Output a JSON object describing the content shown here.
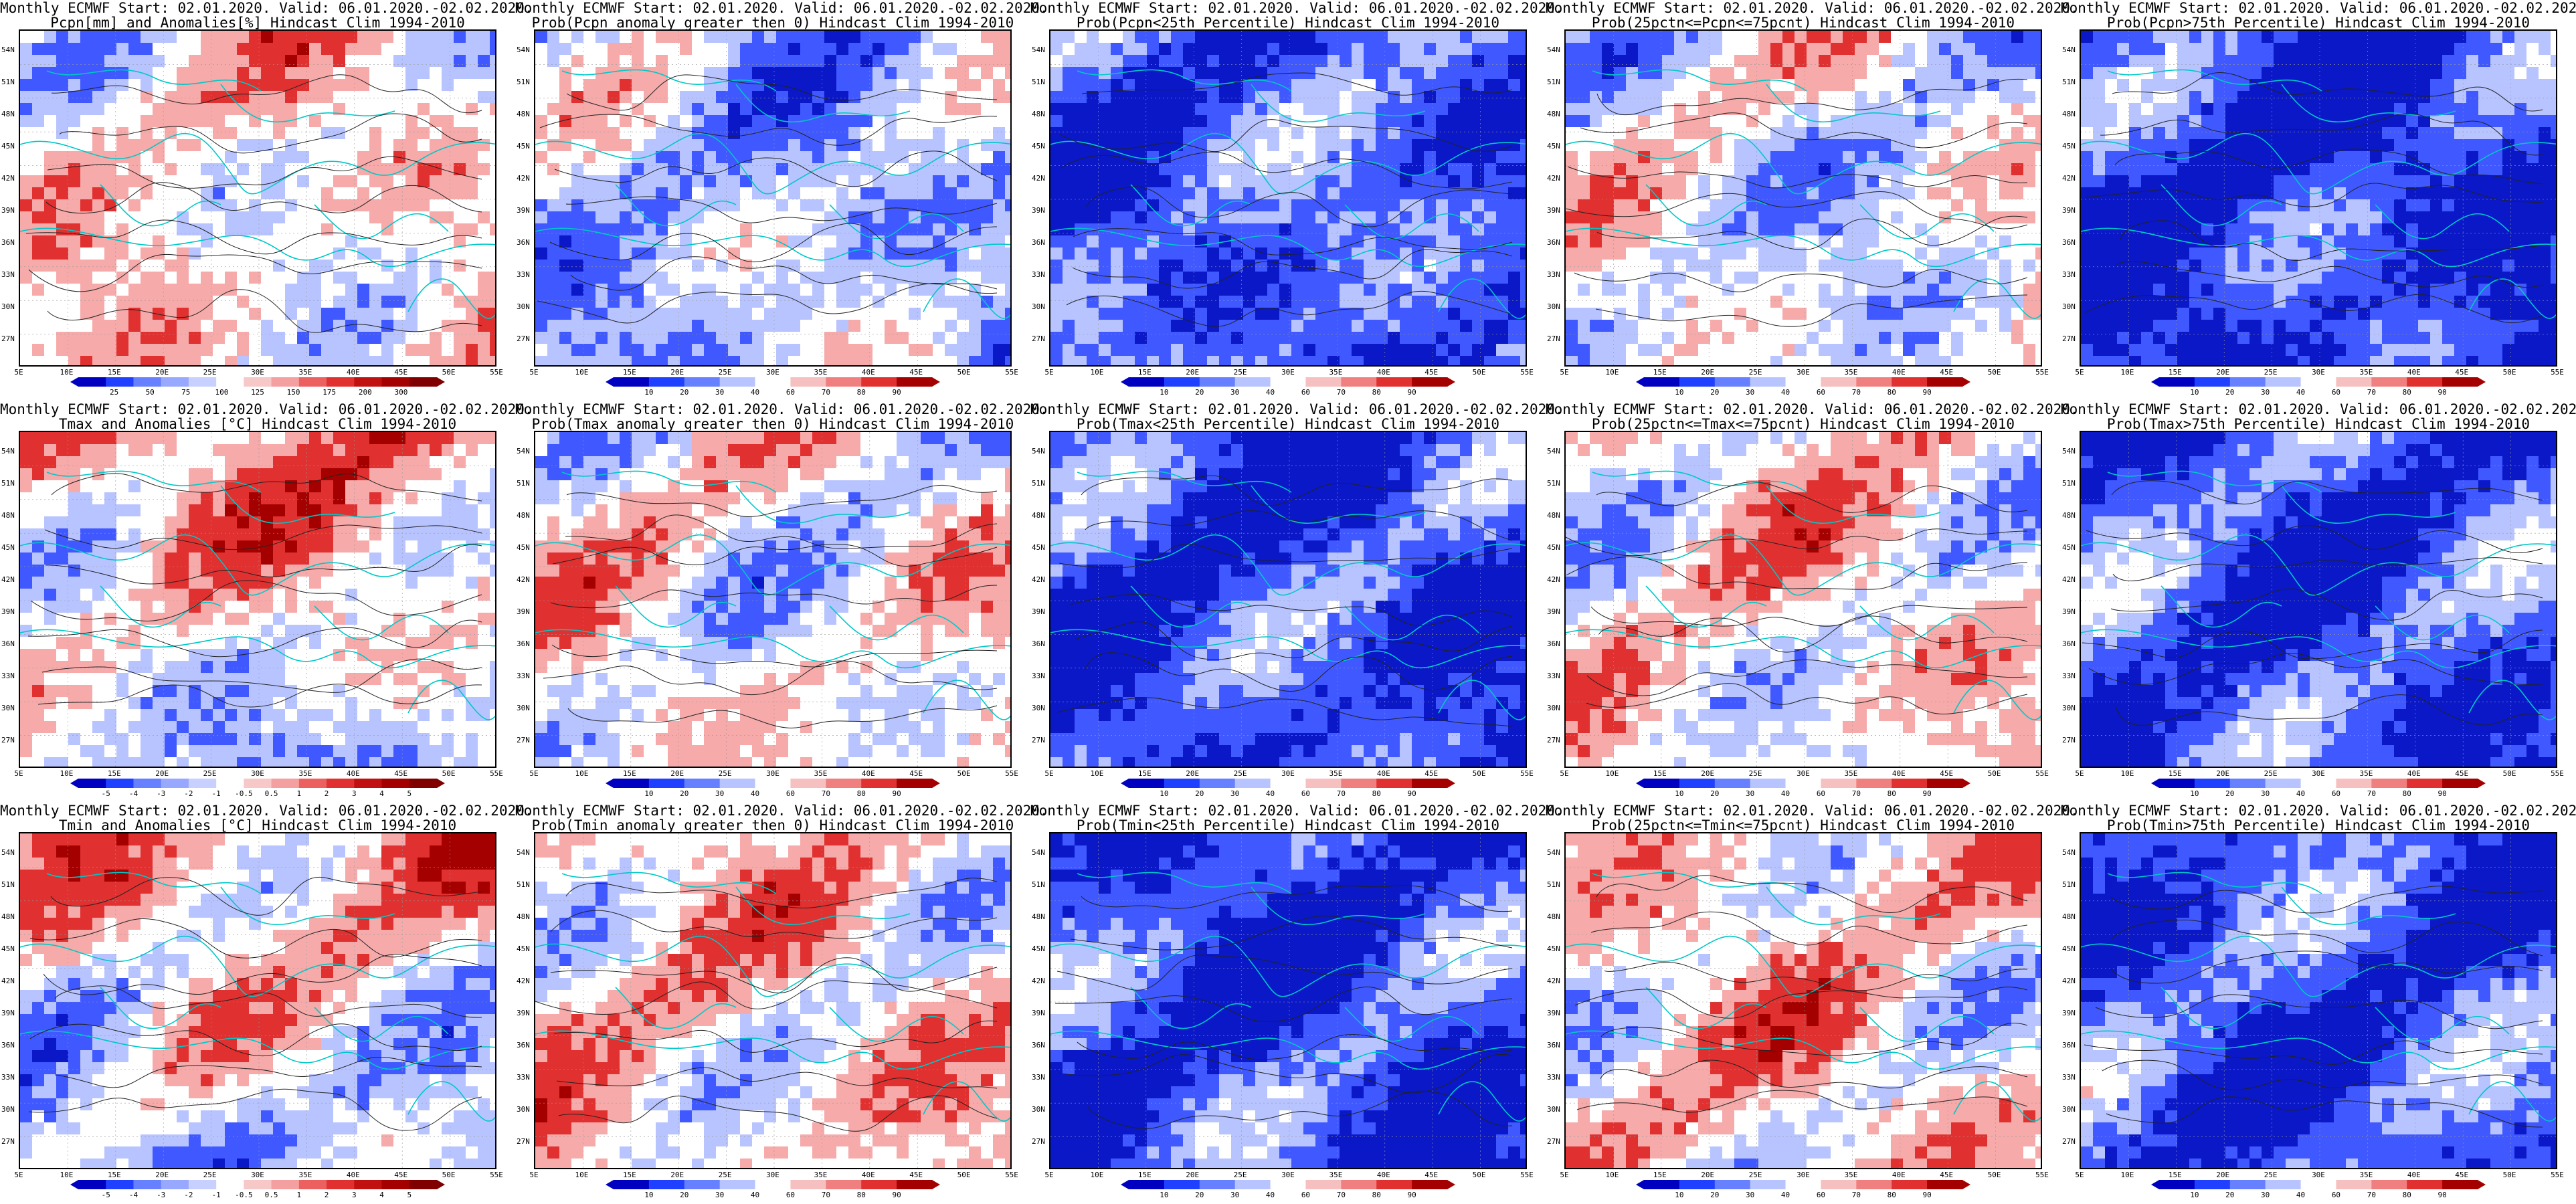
{
  "title_line1": "Monthly ECMWF Start: 02.01.2020. Valid: 06.01.2020.-02.02.2020.",
  "lat_labels": [
    "54N",
    "51N",
    "48N",
    "45N",
    "42N",
    "39N",
    "36N",
    "33N",
    "30N",
    "27N"
  ],
  "lon_labels": [
    "5E",
    "10E",
    "15E",
    "20E",
    "25E",
    "30E",
    "35E",
    "40E",
    "45E",
    "50E",
    "55E"
  ],
  "anomaly_ticks_pcpn": [
    "25",
    "50",
    "75",
    "100",
    "125",
    "150",
    "175",
    "200",
    "300"
  ],
  "anomaly_ticks_temp": [
    "-5",
    "-4",
    "-3",
    "-2",
    "-1",
    "-0.5",
    "0.5",
    "1",
    "2",
    "3",
    "4",
    "5"
  ],
  "prob_ticks": [
    "10",
    "20",
    "30",
    "40",
    "60",
    "70",
    "80",
    "90"
  ],
  "colors": {
    "red_dark": "#a50000",
    "red": "#e03030",
    "pink": "#f6aaaa",
    "blue_light": "#b8c4ff",
    "blue": "#4058ff",
    "blue_dark": "#0a18c8",
    "coast": "#00c8c8"
  },
  "panels": [
    {
      "line2": "Pcpn[mm] and Anomalies[%] Hindcast Clim 1994-2010",
      "kind": "pcpn",
      "bias": 0.1
    },
    {
      "line2": "Prob(Pcpn anomaly greater then 0) Hindcast Clim 1994-2010",
      "kind": "prob",
      "bias": -0.2
    },
    {
      "line2": "Prob(Pcpn<25th Percentile) Hindcast Clim 1994-2010",
      "kind": "prob",
      "bias": -0.5
    },
    {
      "line2": "Prob(25pctn<=Pcpn<=75pcnt) Hindcast Clim 1994-2010",
      "kind": "prob",
      "bias": -0.05
    },
    {
      "line2": "Prob(Pcpn>75th Percentile) Hindcast Clim 1994-2010",
      "kind": "prob",
      "bias": -0.65
    },
    {
      "line2": "Tmax and Anomalies [°C] Hindcast Clim 1994-2010",
      "kind": "temp",
      "bias": 0.15
    },
    {
      "line2": "Prob(Tmax anomaly greater then 0) Hindcast Clim 1994-2010",
      "kind": "prob",
      "bias": 0.05
    },
    {
      "line2": "Prob(Tmax<25th Percentile) Hindcast Clim 1994-2010",
      "kind": "prob",
      "bias": -0.6
    },
    {
      "line2": "Prob(25pctn<=Tmax<=75pcnt) Hindcast Clim 1994-2010",
      "kind": "prob",
      "bias": 0.1
    },
    {
      "line2": "Prob(Tmax>75th Percentile) Hindcast Clim 1994-2010",
      "kind": "prob",
      "bias": -0.55
    },
    {
      "line2": "Tmin and Anomalies [°C] Hindcast Clim 1994-2010",
      "kind": "temp",
      "bias": 0.1
    },
    {
      "line2": "Prob(Tmin anomaly greater then 0) Hindcast Clim 1994-2010",
      "kind": "prob",
      "bias": 0.15
    },
    {
      "line2": "Prob(Tmin<25th Percentile) Hindcast Clim 1994-2010",
      "kind": "prob",
      "bias": -0.6
    },
    {
      "line2": "Prob(25pctn<=Tmin<=75pcnt) Hindcast Clim 1994-2010",
      "kind": "prob",
      "bias": 0.15
    },
    {
      "line2": "Prob(Tmin>75th Percentile) Hindcast Clim 1994-2010",
      "kind": "prob",
      "bias": -0.55
    }
  ]
}
